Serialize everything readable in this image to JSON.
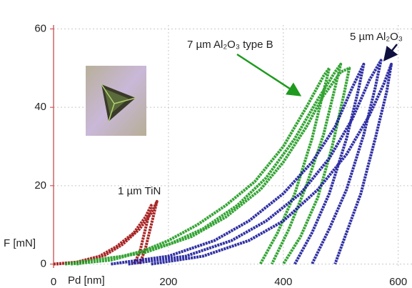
{
  "chart_data": {
    "type": "line",
    "xlabel": "Pd [nm]",
    "ylabel": "F [mN]",
    "xlim": [
      0,
      624
    ],
    "ylim": [
      -1,
      61
    ],
    "xticks": [
      0,
      200,
      400,
      600
    ],
    "yticks": [
      0,
      20,
      40,
      60
    ],
    "grid": true,
    "series": [
      {
        "name": "1 µm TiN",
        "color": "#a01010",
        "x": [
          0,
          40,
          80,
          110,
          140,
          160,
          170,
          160,
          150,
          140,
          null,
          5,
          50,
          90,
          120,
          150,
          170,
          180,
          170,
          160,
          150
        ],
        "values": [
          0,
          0.5,
          2,
          4.5,
          8,
          12,
          15,
          9,
          3,
          0,
          null,
          0,
          0.6,
          2.3,
          5,
          9,
          13,
          16,
          10,
          4,
          0
        ]
      },
      {
        "name": "7 µm Al₂O₃ type B",
        "color": "#1e9a1e",
        "x": [
          30,
          100,
          150,
          200,
          250,
          300,
          350,
          400,
          440,
          470,
          480,
          470,
          450,
          420,
          390,
          360,
          null,
          20,
          120,
          200,
          260,
          320,
          370,
          420,
          460,
          490,
          500,
          490,
          470,
          440,
          410,
          380,
          null,
          40,
          160,
          240,
          300,
          360,
          400,
          440,
          470,
          500,
          515,
          505,
          485,
          460,
          430,
          400
        ],
        "values": [
          0,
          1,
          3,
          6,
          10,
          15,
          21,
          30,
          40,
          48,
          50,
          44,
          32,
          18,
          8,
          0,
          null,
          0,
          2,
          5,
          9,
          15,
          22,
          32,
          42,
          49,
          51,
          45,
          33,
          20,
          9,
          0,
          null,
          0,
          3,
          7,
          12,
          19,
          26,
          35,
          43,
          49,
          50,
          43,
          30,
          17,
          7,
          0
        ]
      },
      {
        "name": "5 µm Al₂O₃",
        "color": "#1a1a9a",
        "x": [
          100,
          200,
          280,
          340,
          400,
          450,
          490,
          520,
          540,
          530,
          510,
          480,
          450,
          420,
          null,
          130,
          230,
          310,
          370,
          430,
          480,
          520,
          550,
          570,
          560,
          540,
          510,
          480,
          450,
          null,
          170,
          260,
          340,
          400,
          460,
          510,
          550,
          575,
          588,
          580,
          560,
          535,
          510,
          490
        ],
        "values": [
          0,
          2,
          6,
          11,
          18,
          26,
          35,
          45,
          51,
          44,
          32,
          18,
          8,
          0,
          null,
          0,
          2,
          6,
          11,
          18,
          27,
          37,
          47,
          52,
          45,
          33,
          19,
          9,
          0,
          null,
          0,
          2,
          6,
          11,
          19,
          28,
          38,
          46,
          51,
          44,
          32,
          18,
          8,
          0
        ]
      }
    ]
  }
}
